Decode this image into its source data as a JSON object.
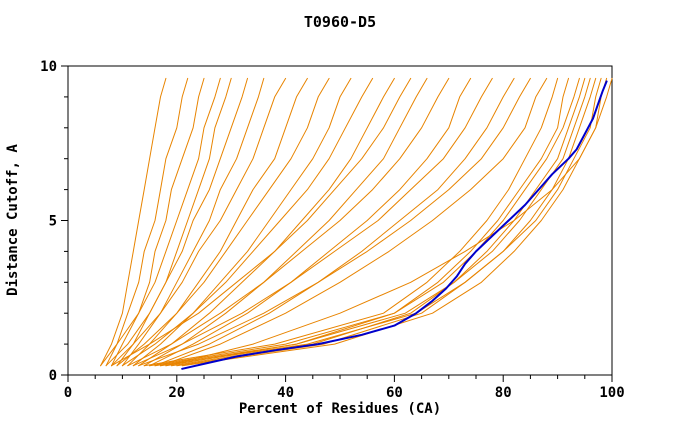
{
  "chart_data": {
    "type": "line",
    "title": "T0960-D5",
    "xlabel": "Percent of Residues (CA)",
    "ylabel": "Distance Cutoff, A",
    "xlim": [
      0,
      100
    ],
    "ylim": [
      0,
      10
    ],
    "x_ticks_major": [
      0,
      20,
      40,
      60,
      80,
      100
    ],
    "x_tick_minor_step": 5,
    "y_ticks_major": [
      0,
      5,
      10
    ],
    "y_tick_minor_step": 1,
    "grid": false,
    "legend": "none",
    "colors": {
      "model": "#e88400",
      "highlight": "#0000cc",
      "axis": "#000000",
      "background": "#ffffff"
    },
    "y_levels": [
      0.3,
      1,
      2,
      3,
      4,
      5,
      6,
      7,
      8,
      9,
      9.6
    ],
    "series": [
      {
        "name": "model-01",
        "role": "model",
        "width": 1,
        "x": [
          6,
          8,
          10,
          11,
          12,
          13,
          14,
          15,
          16,
          17,
          18
        ]
      },
      {
        "name": "model-02",
        "role": "model",
        "width": 1,
        "x": [
          7,
          9,
          11,
          13,
          14,
          16,
          17,
          18,
          20,
          21,
          22
        ]
      },
      {
        "name": "model-03",
        "role": "model",
        "width": 1,
        "x": [
          8,
          10,
          13,
          15,
          16,
          18,
          19,
          21,
          23,
          24,
          25
        ]
      },
      {
        "name": "model-04",
        "role": "model",
        "width": 1,
        "x": [
          6,
          9,
          13,
          16,
          18,
          20,
          22,
          24,
          25,
          27,
          28
        ]
      },
      {
        "name": "model-05",
        "role": "model",
        "width": 1,
        "x": [
          9,
          12,
          15,
          18,
          20,
          22,
          24,
          26,
          27,
          29,
          30
        ]
      },
      {
        "name": "model-06",
        "role": "model",
        "width": 1,
        "x": [
          7,
          11,
          15,
          18,
          21,
          23,
          26,
          28,
          30,
          32,
          33
        ]
      },
      {
        "name": "model-07",
        "role": "model",
        "width": 1,
        "x": [
          10,
          13,
          17,
          20,
          23,
          26,
          28,
          31,
          33,
          35,
          36
        ]
      },
      {
        "name": "model-08",
        "role": "model",
        "width": 1,
        "x": [
          8,
          12,
          17,
          21,
          24,
          28,
          31,
          34,
          36,
          38,
          40
        ]
      },
      {
        "name": "model-09",
        "role": "model",
        "width": 1,
        "x": [
          11,
          15,
          20,
          24,
          28,
          31,
          34,
          38,
          40,
          42,
          44
        ]
      },
      {
        "name": "model-10",
        "role": "model",
        "width": 1,
        "x": [
          9,
          14,
          20,
          25,
          29,
          33,
          37,
          41,
          44,
          46,
          48
        ]
      },
      {
        "name": "model-11",
        "role": "model",
        "width": 1,
        "x": [
          12,
          17,
          23,
          28,
          33,
          37,
          41,
          45,
          48,
          50,
          52
        ]
      },
      {
        "name": "model-12",
        "role": "model",
        "width": 1,
        "x": [
          10,
          16,
          23,
          29,
          34,
          39,
          44,
          48,
          51,
          54,
          56
        ]
      },
      {
        "name": "model-13",
        "role": "model",
        "width": 1,
        "x": [
          13,
          19,
          26,
          32,
          38,
          43,
          48,
          52,
          55,
          58,
          60
        ]
      },
      {
        "name": "model-14",
        "role": "model",
        "width": 1,
        "x": [
          8,
          15,
          24,
          31,
          38,
          44,
          49,
          54,
          58,
          61,
          63
        ]
      },
      {
        "name": "model-15",
        "role": "model",
        "width": 1,
        "x": [
          14,
          21,
          29,
          36,
          42,
          48,
          53,
          58,
          61,
          64,
          66
        ]
      },
      {
        "name": "model-16",
        "role": "model",
        "width": 1,
        "x": [
          11,
          19,
          28,
          36,
          43,
          50,
          56,
          61,
          65,
          68,
          70
        ]
      },
      {
        "name": "model-17",
        "role": "model",
        "width": 1,
        "x": [
          15,
          23,
          33,
          41,
          48,
          55,
          61,
          66,
          70,
          72,
          74
        ]
      },
      {
        "name": "model-18",
        "role": "model",
        "width": 1,
        "x": [
          12,
          21,
          32,
          41,
          49,
          57,
          63,
          69,
          73,
          76,
          78
        ]
      },
      {
        "name": "model-19",
        "role": "model",
        "width": 1,
        "x": [
          16,
          26,
          37,
          46,
          54,
          61,
          68,
          73,
          77,
          80,
          82
        ]
      },
      {
        "name": "model-20",
        "role": "model",
        "width": 1,
        "x": [
          13,
          24,
          36,
          46,
          55,
          63,
          70,
          76,
          80,
          83,
          85
        ]
      },
      {
        "name": "model-21",
        "role": "model",
        "width": 1,
        "x": [
          17,
          28,
          40,
          50,
          59,
          67,
          74,
          80,
          84,
          86,
          88
        ]
      },
      {
        "name": "model-22",
        "role": "model",
        "width": 1,
        "x": [
          14,
          38,
          58,
          66,
          72,
          77,
          81,
          84,
          87,
          89,
          90
        ]
      },
      {
        "name": "model-23",
        "role": "model",
        "width": 1,
        "x": [
          18,
          42,
          60,
          68,
          74,
          79,
          83,
          87,
          90,
          91,
          92
        ]
      },
      {
        "name": "model-24",
        "role": "model",
        "width": 1,
        "x": [
          15,
          40,
          60,
          69,
          75,
          80,
          84,
          88,
          91,
          93,
          94
        ]
      },
      {
        "name": "model-25",
        "role": "model",
        "width": 1,
        "x": [
          19,
          45,
          63,
          71,
          77,
          82,
          86,
          90,
          92,
          94,
          95
        ]
      },
      {
        "name": "model-26",
        "role": "model",
        "width": 1,
        "x": [
          16,
          42,
          62,
          71,
          78,
          83,
          87,
          91,
          93,
          95,
          96
        ]
      },
      {
        "name": "model-27",
        "role": "model",
        "width": 1,
        "x": [
          20,
          47,
          65,
          73,
          80,
          85,
          89,
          92,
          94,
          96,
          97
        ]
      },
      {
        "name": "model-28",
        "role": "model",
        "width": 1,
        "x": [
          17,
          44,
          64,
          73,
          80,
          86,
          90,
          93,
          96,
          97,
          98
        ]
      },
      {
        "name": "model-29",
        "role": "model",
        "width": 1,
        "x": [
          21,
          49,
          67,
          76,
          82,
          87,
          91,
          94,
          97,
          98,
          99
        ]
      },
      {
        "name": "model-30",
        "role": "model",
        "width": 1,
        "x": [
          18,
          34,
          50,
          63,
          73,
          82,
          89,
          94,
          97,
          99,
          100
        ]
      },
      {
        "name": "highlight-model",
        "role": "highlight",
        "width": 2,
        "y": [
          0.2,
          0.4,
          0.6,
          0.8,
          1.0,
          1.3,
          1.6,
          2.0,
          2.4,
          2.8,
          3.2,
          3.6,
          4.0,
          4.5,
          5.0,
          5.5,
          6.0,
          6.5,
          7.0,
          7.3,
          7.8,
          8.3,
          8.8,
          9.2,
          9.5
        ],
        "x": [
          21,
          26,
          31,
          38,
          46,
          54,
          60,
          64,
          67,
          69.5,
          71.5,
          73,
          75,
          78,
          81,
          84,
          86.5,
          89,
          92,
          93.5,
          95,
          96.5,
          97.5,
          98.3,
          99
        ]
      }
    ]
  }
}
